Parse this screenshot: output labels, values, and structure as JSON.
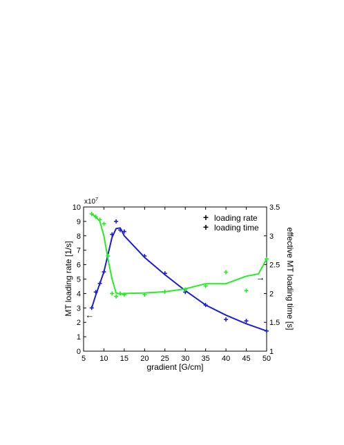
{
  "chart_data": {
    "type": "scatter",
    "xlabel": "gradient [G/cm]",
    "ylabel_left": "MT loading rate [1/s]",
    "ylabel_right": "effective MT loading time [s]",
    "exponent_label": "x10",
    "exponent_sup": "7",
    "x_ticks": [
      5,
      10,
      15,
      20,
      25,
      30,
      35,
      40,
      45,
      50
    ],
    "x_tick_labels": [
      "5",
      "10",
      "15",
      "20",
      "25",
      "30",
      "35",
      "40",
      "45",
      "50"
    ],
    "xlim": [
      5,
      50
    ],
    "y_left_ticks": [
      0,
      1,
      2,
      3,
      4,
      5,
      6,
      7,
      8,
      9,
      10
    ],
    "y_left_tick_labels": [
      "0",
      "1",
      "2",
      "3",
      "4",
      "5",
      "6",
      "7",
      "8",
      "9",
      "10"
    ],
    "y_left_lim": [
      0,
      10
    ],
    "y_right_ticks": [
      1,
      1.5,
      2,
      2.5,
      3,
      3.5
    ],
    "y_right_tick_labels": [
      "1",
      "1.5",
      "2",
      "2.5",
      "3",
      "3.5"
    ],
    "y_right_lim": [
      1,
      3.5
    ],
    "legend_position": "top-right",
    "series": [
      {
        "name": "loading rate",
        "axis": "left",
        "color": "#1c1cd6",
        "points_x": [
          7,
          8,
          9,
          10,
          12,
          13,
          14,
          15,
          20,
          25,
          30,
          35,
          40,
          45,
          50
        ],
        "points_y": [
          3.0,
          4.1,
          4.7,
          5.5,
          8.1,
          9.0,
          8.4,
          8.3,
          6.6,
          5.4,
          4.1,
          3.2,
          2.2,
          2.1,
          1.4
        ],
        "line_x": [
          7,
          8,
          9,
          10,
          11,
          12,
          13,
          14,
          15,
          20,
          25,
          30,
          35,
          40,
          45,
          50
        ],
        "line_y": [
          3.0,
          3.9,
          4.7,
          5.5,
          6.7,
          7.9,
          8.5,
          8.55,
          8.0,
          6.5,
          5.3,
          4.2,
          3.2,
          2.5,
          1.9,
          1.4
        ]
      },
      {
        "name": "loading time",
        "axis": "right",
        "color": "#22ee22",
        "points_x": [
          7,
          8,
          9,
          10,
          11,
          12,
          13,
          14,
          15,
          20,
          25,
          30,
          35,
          40,
          45,
          50
        ],
        "points_y": [
          3.38,
          3.33,
          3.28,
          3.21,
          2.65,
          2.0,
          1.95,
          2.0,
          1.98,
          1.98,
          2.03,
          2.07,
          2.13,
          2.37,
          2.05,
          2.6
        ],
        "line_x": [
          7,
          8,
          9,
          10,
          11,
          12,
          13,
          14,
          15,
          20,
          25,
          30,
          35,
          40,
          45,
          48,
          50
        ],
        "line_y": [
          3.38,
          3.33,
          3.25,
          3.0,
          2.6,
          2.25,
          2.01,
          1.99,
          2.0,
          2.01,
          2.03,
          2.08,
          2.17,
          2.17,
          2.3,
          2.34,
          2.6
        ]
      }
    ],
    "annotations": [
      {
        "text": "←",
        "axis": "left",
        "x": 6.5,
        "y": 2.5,
        "color": "#1c1cd6"
      },
      {
        "text": "→",
        "axis": "left",
        "x": 48.5,
        "y": 5.1,
        "color": "#22ee22"
      }
    ]
  }
}
